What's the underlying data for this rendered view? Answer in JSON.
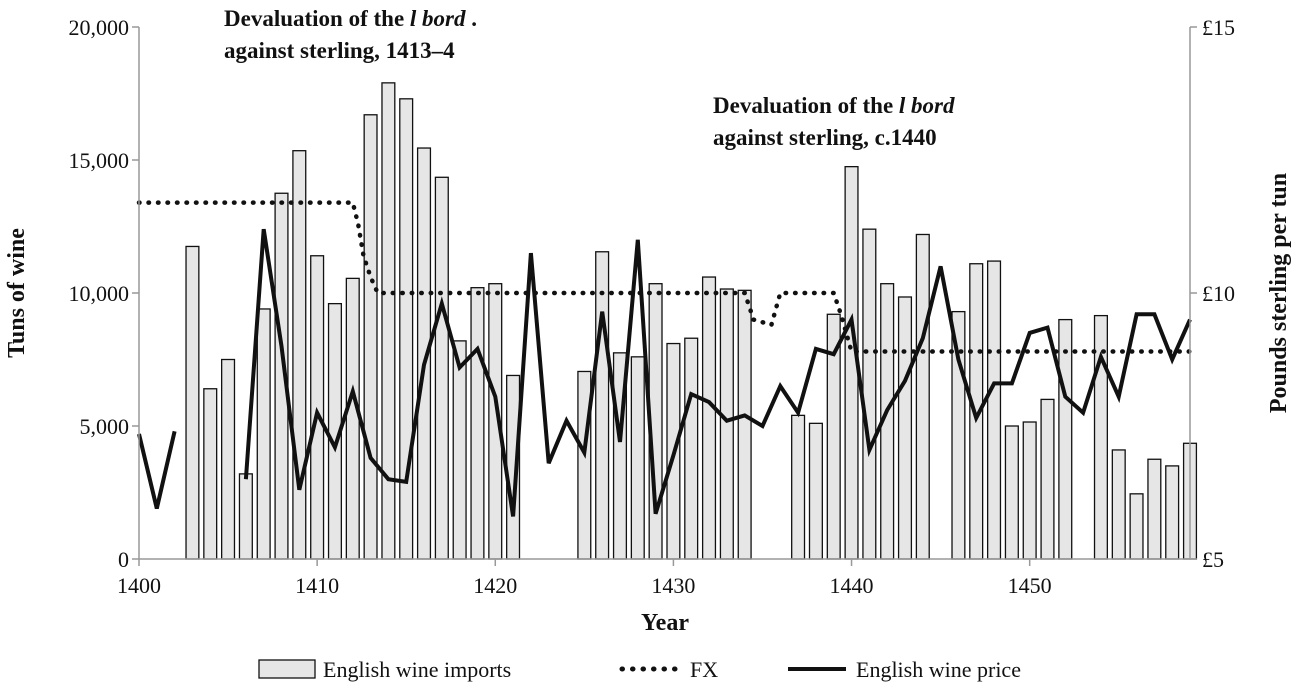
{
  "chart_data": {
    "type": "bar",
    "xlabel": "Year",
    "ylabel": "Tuns of wine",
    "y2label": "Pounds sterling per tun",
    "xlim": [
      1400,
      1459
    ],
    "ylim": [
      0,
      20000
    ],
    "y2lim": [
      5,
      15
    ],
    "x_ticks": [
      "1400",
      "1410",
      "1420",
      "1430",
      "1440",
      "1450"
    ],
    "y_ticks": [
      "0",
      "5,000",
      "10,000",
      "15,000",
      "20,000"
    ],
    "y2_ticks": [
      "£5",
      "£10",
      "£15"
    ],
    "grid": false,
    "legend_position": "bottom",
    "annotations": [
      {
        "lines": [
          [
            "Devaluation of the ",
            "l bord",
            " ."
          ],
          [
            "against sterling, 1413–4",
            "",
            ""
          ]
        ],
        "x": 1413
      },
      {
        "lines": [
          [
            "Devaluation of the ",
            "l bord",
            ""
          ],
          [
            "against sterling, c.1440",
            "",
            ""
          ]
        ],
        "x": 1440
      }
    ],
    "series": [
      {
        "name": "English wine imports",
        "kind": "bar",
        "axis": "left",
        "color": "#e6e6e6",
        "x": [
          1403,
          1404,
          1405,
          1406,
          1407,
          1408,
          1409,
          1410,
          1411,
          1412,
          1413,
          1414,
          1415,
          1416,
          1417,
          1418,
          1419,
          1420,
          1421,
          1425,
          1426,
          1427,
          1428,
          1429,
          1430,
          1431,
          1432,
          1433,
          1434,
          1435,
          1437,
          1438,
          1439,
          1440,
          1441,
          1442,
          1443,
          1444,
          1445,
          1446,
          1447,
          1448,
          1449,
          1450,
          1451,
          1452,
          1453,
          1454,
          1455,
          1456,
          1457,
          1458,
          1459
        ],
        "values": [
          11750,
          6400,
          7500,
          3200,
          9400,
          13750,
          15350,
          11400,
          9600,
          10550,
          16700,
          17900,
          17300,
          15450,
          14350,
          8200,
          10200,
          10350,
          6900,
          7050,
          11550,
          7750,
          7600,
          10350,
          8100,
          8300,
          10600,
          10150,
          10100,
          null,
          5400,
          5100,
          9200,
          14750,
          12400,
          10350,
          9850,
          12200,
          null,
          9300,
          11100,
          11200,
          5000,
          5150,
          6000,
          9000,
          null,
          9150,
          4100,
          2450,
          3750,
          3500,
          4350
        ]
      },
      {
        "name": "FX",
        "kind": "dotted-line",
        "axis": "right",
        "color": "#111111",
        "x": [
          1400,
          1412,
          1412.3,
          1412.6,
          1413,
          1413.4,
          1420,
          1425,
          1434,
          1434.5,
          1435.5,
          1436,
          1439,
          1439.4,
          1440,
          1445,
          1450,
          1455,
          1459
        ],
        "values": [
          11.7,
          11.7,
          11.3,
          10.7,
          10.3,
          10.0,
          10.0,
          10.0,
          10.0,
          9.5,
          9.4,
          10.0,
          10.0,
          9.6,
          8.9,
          8.9,
          8.9,
          8.9,
          8.9
        ]
      },
      {
        "name": "English wine price",
        "kind": "line",
        "axis": "right",
        "color": "#111111",
        "segments": [
          {
            "x": [
              1400,
              1401,
              1402
            ],
            "values": [
              7.35,
              5.95,
              7.4
            ]
          },
          {
            "x": [
              1406,
              1407,
              1408,
              1409,
              1410,
              1411,
              1412,
              1413,
              1414,
              1415,
              1416,
              1417,
              1418,
              1419,
              1420,
              1421,
              1422,
              1423,
              1424,
              1425,
              1426,
              1427,
              1428,
              1429,
              1430,
              1431,
              1432,
              1433,
              1434,
              1435,
              1436,
              1437,
              1438,
              1439,
              1440,
              1441,
              1442,
              1443,
              1444,
              1445,
              1446,
              1447,
              1448,
              1449,
              1450,
              1451,
              1452,
              1453,
              1454,
              1455,
              1456,
              1457,
              1458,
              1459
            ],
            "values": [
              6.5,
              11.2,
              9.0,
              6.3,
              7.75,
              7.1,
              8.15,
              6.9,
              6.5,
              6.45,
              8.65,
              9.8,
              8.6,
              8.95,
              8.05,
              5.8,
              10.75,
              6.8,
              7.6,
              7.0,
              9.65,
              7.2,
              11.0,
              5.85,
              6.95,
              8.1,
              7.95,
              7.6,
              7.7,
              7.5,
              8.25,
              7.75,
              8.95,
              8.85,
              9.5,
              7.05,
              7.8,
              8.35,
              9.15,
              10.5,
              8.75,
              7.65,
              8.3,
              8.3,
              9.25,
              9.35,
              8.05,
              7.75,
              8.8,
              8.05,
              9.6,
              9.6,
              8.75,
              9.5
            ]
          }
        ]
      }
    ]
  }
}
